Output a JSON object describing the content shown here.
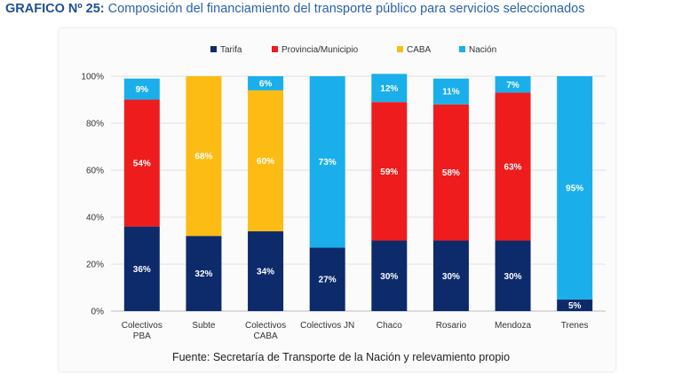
{
  "heading": {
    "label": "GRAFICO Nº 25:",
    "text": "Composición del financiamiento del transporte público para servicios seleccionados"
  },
  "source": "Fuente: Secretaría de Transporte de la Nación y relevamiento propio",
  "chart_data": {
    "type": "bar",
    "stacked": true,
    "title": "Composición del financiamiento del transporte público para servicios seleccionados",
    "xlabel": "",
    "ylabel": "",
    "ylim": [
      0,
      100
    ],
    "yticks": [
      "0%",
      "20%",
      "40%",
      "60%",
      "80%",
      "100%"
    ],
    "legend_position": "top",
    "categories": [
      [
        "Colectivos",
        "PBA"
      ],
      [
        "Subte"
      ],
      [
        "Colectivos",
        "CABA"
      ],
      [
        "Colectivos JN"
      ],
      [
        "Chaco"
      ],
      [
        "Rosario"
      ],
      [
        "Mendoza"
      ],
      [
        "Trenes"
      ]
    ],
    "series": [
      {
        "name": "Tarifa",
        "color": "#0d2a6b",
        "values": [
          36,
          32,
          34,
          27,
          30,
          30,
          30,
          5
        ],
        "labels": [
          "36%",
          "32%",
          "34%",
          "27%",
          "30%",
          "30%",
          "30%",
          "5%"
        ]
      },
      {
        "name": "Provincia/Municipio",
        "color": "#ee1c1c",
        "values": [
          54,
          0,
          0,
          0,
          59,
          58,
          63,
          0
        ],
        "labels": [
          "54%",
          "",
          "",
          "",
          "59%",
          "58%",
          "63%",
          ""
        ]
      },
      {
        "name": "CABA",
        "color": "#fcbc13",
        "values": [
          0,
          68,
          60,
          0,
          0,
          0,
          0,
          0
        ],
        "labels": [
          "",
          "68%",
          "60%",
          "",
          "",
          "",
          "",
          ""
        ]
      },
      {
        "name": "Nación",
        "color": "#1aafea",
        "values": [
          9,
          0,
          6,
          73,
          12,
          11,
          7,
          95
        ],
        "labels": [
          "9%",
          "",
          "6%",
          "73%",
          "12%",
          "11%",
          "7%",
          "95%"
        ]
      }
    ]
  }
}
